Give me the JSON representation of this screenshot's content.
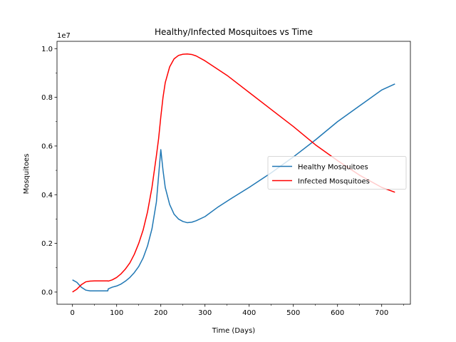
{
  "chart_data": {
    "type": "line",
    "title": "Healthy/Infected Mosquitoes vs Time",
    "xlabel": "Time (Days)",
    "ylabel": "Mosquitoes",
    "offset_text": "1e7",
    "xlim": [
      -35,
      765
    ],
    "ylim": [
      -0.05,
      1.03
    ],
    "xticks": [
      0,
      100,
      200,
      300,
      400,
      500,
      600,
      700
    ],
    "xticklabels": [
      "0",
      "100",
      "200",
      "300",
      "400",
      "500",
      "600",
      "700"
    ],
    "yticks": [
      0.0,
      0.2,
      0.4,
      0.6,
      0.8,
      1.0
    ],
    "yticklabels": [
      "0.0",
      "0.2",
      "0.4",
      "0.6",
      "0.8",
      "1.0"
    ],
    "grid": false,
    "legend_position": "center-right",
    "series": [
      {
        "name": "Healthy Mosquitoes",
        "color": "#1f77b4",
        "x": [
          0,
          10,
          20,
          30,
          40,
          50,
          60,
          70,
          80,
          81,
          90,
          100,
          110,
          120,
          130,
          140,
          150,
          160,
          170,
          180,
          190,
          200,
          205,
          210,
          220,
          230,
          240,
          250,
          260,
          270,
          280,
          300,
          330,
          360,
          400,
          450,
          500,
          550,
          600,
          650,
          700,
          730
        ],
        "y": [
          0.05,
          0.04,
          0.02,
          0.008,
          0.005,
          0.005,
          0.005,
          0.005,
          0.005,
          0.013,
          0.02,
          0.025,
          0.033,
          0.045,
          0.06,
          0.08,
          0.105,
          0.14,
          0.19,
          0.26,
          0.37,
          0.585,
          0.5,
          0.43,
          0.36,
          0.32,
          0.3,
          0.29,
          0.285,
          0.287,
          0.293,
          0.31,
          0.35,
          0.385,
          0.43,
          0.49,
          0.555,
          0.625,
          0.7,
          0.765,
          0.83,
          0.855
        ]
      },
      {
        "name": "Infected Mosquitoes",
        "color": "#ff0000",
        "x": [
          0,
          10,
          20,
          30,
          40,
          50,
          60,
          70,
          80,
          81,
          90,
          100,
          110,
          120,
          130,
          140,
          150,
          160,
          170,
          180,
          190,
          195,
          200,
          205,
          210,
          220,
          230,
          240,
          250,
          260,
          270,
          280,
          300,
          350,
          400,
          450,
          500,
          550,
          600,
          650,
          700,
          730
        ],
        "y": [
          0.0,
          0.012,
          0.03,
          0.042,
          0.045,
          0.046,
          0.046,
          0.046,
          0.046,
          0.045,
          0.05,
          0.06,
          0.075,
          0.095,
          0.12,
          0.155,
          0.2,
          0.255,
          0.33,
          0.43,
          0.56,
          0.63,
          0.72,
          0.8,
          0.86,
          0.925,
          0.958,
          0.972,
          0.977,
          0.978,
          0.976,
          0.97,
          0.95,
          0.89,
          0.82,
          0.75,
          0.68,
          0.605,
          0.54,
          0.48,
          0.43,
          0.41
        ]
      }
    ]
  }
}
